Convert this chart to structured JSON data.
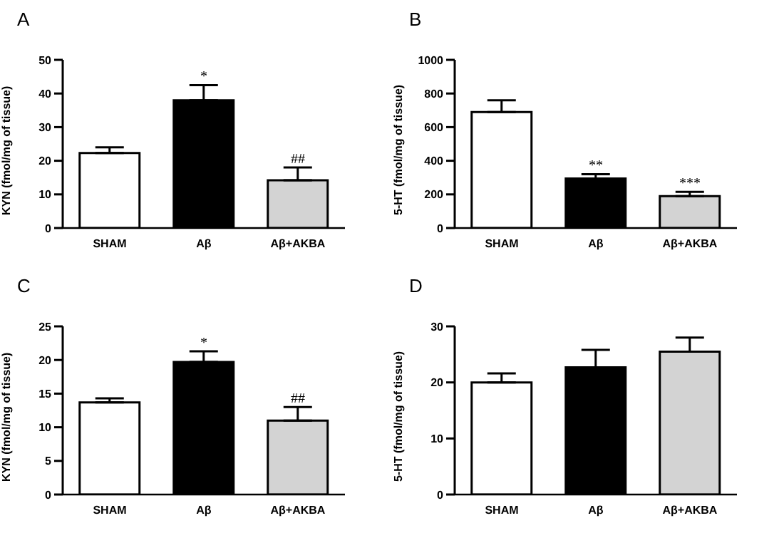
{
  "chart_data": [
    {
      "type": "bar",
      "title": "A",
      "ylabel": "KYN (fmol/mg of tissue)",
      "categories": [
        "SHAM",
        "Aβ",
        "Aβ+AKBA"
      ],
      "values": [
        22.3,
        38,
        14.2
      ],
      "errors": [
        [
          22.3,
          24
        ],
        [
          38,
          42.5
        ],
        [
          14.2,
          18
        ]
      ],
      "colors": [
        "#ffffff",
        "#000000",
        "#d3d3d3"
      ],
      "ylim": [
        0,
        50
      ],
      "yticks": [
        0,
        10,
        20,
        30,
        40,
        50
      ],
      "annotations": [
        {
          "text": "*",
          "x": "Aβ",
          "y": 42.5
        },
        {
          "text": "##",
          "x": "Aβ+AKBA",
          "y": 18
        }
      ]
    },
    {
      "type": "bar",
      "title": "B",
      "ylabel": "5-HT (fmol/mg of tissue)",
      "categories": [
        "SHAM",
        "Aβ",
        "Aβ+AKBA"
      ],
      "values": [
        690,
        295,
        190
      ],
      "errors": [
        [
          690,
          760
        ],
        [
          295,
          320
        ],
        [
          190,
          215
        ]
      ],
      "colors": [
        "#ffffff",
        "#000000",
        "#d3d3d3"
      ],
      "ylim": [
        0,
        1000
      ],
      "yticks": [
        0,
        200,
        400,
        600,
        800,
        1000
      ],
      "annotations": [
        {
          "text": "**",
          "x": "Aβ",
          "y": 320
        },
        {
          "text": "***",
          "x": "Aβ+AKBA",
          "y": 215
        }
      ]
    },
    {
      "type": "bar",
      "title": "C",
      "ylabel": "KYN (fmol/mg of tissue)",
      "categories": [
        "SHAM",
        "Aβ",
        "Aβ+AKBA"
      ],
      "values": [
        13.7,
        19.7,
        11
      ],
      "errors": [
        [
          13.7,
          14.3
        ],
        [
          19.7,
          21.3
        ],
        [
          11,
          13
        ]
      ],
      "colors": [
        "#ffffff",
        "#000000",
        "#d3d3d3"
      ],
      "ylim": [
        0,
        25
      ],
      "yticks": [
        0,
        5,
        10,
        15,
        20,
        25
      ],
      "annotations": [
        {
          "text": "*",
          "x": "Aβ",
          "y": 21.3
        },
        {
          "text": "##",
          "x": "Aβ+AKBA",
          "y": 13
        }
      ]
    },
    {
      "type": "bar",
      "title": "D",
      "ylabel": "5-HT (fmol/mg of tissue)",
      "categories": [
        "SHAM",
        "Aβ",
        "Aβ+AKBA"
      ],
      "values": [
        20,
        22.7,
        25.5
      ],
      "errors": [
        [
          20,
          21.6
        ],
        [
          22.7,
          25.8
        ],
        [
          25.5,
          28
        ]
      ],
      "colors": [
        "#ffffff",
        "#000000",
        "#d3d3d3"
      ],
      "ylim": [
        0,
        30
      ],
      "yticks": [
        0,
        10,
        20,
        30
      ]
    }
  ]
}
